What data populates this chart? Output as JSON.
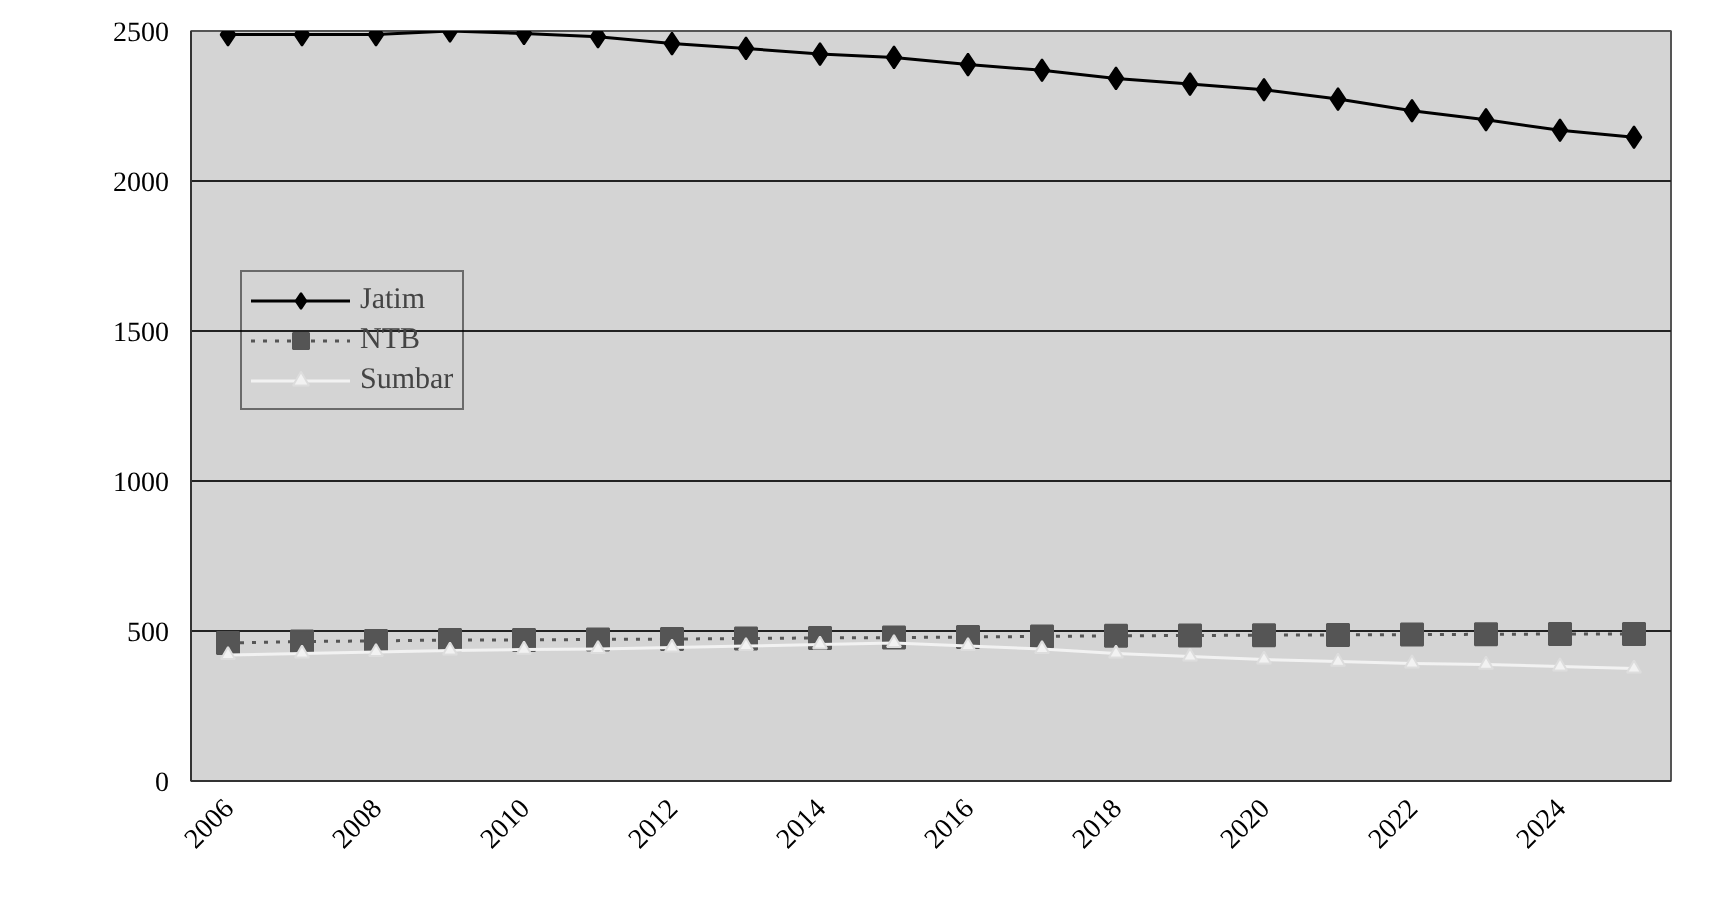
{
  "chart_data": {
    "type": "line",
    "categories": [
      "2006",
      null,
      "2008",
      null,
      "2010",
      null,
      "2012",
      null,
      "2014",
      null,
      "2016",
      null,
      "2018",
      null,
      "2020",
      null,
      "2022",
      null,
      "2024",
      null
    ],
    "series": [
      {
        "name": "Jatim",
        "color": "#000000",
        "marker": "diamond",
        "line_style": "solid",
        "values": [
          2488,
          2488,
          2488,
          2500,
          2492,
          2481,
          2458,
          2442,
          2423,
          2412,
          2388,
          2369,
          2342,
          2323,
          2304,
          2273,
          2234,
          2204,
          2169,
          2146
        ]
      },
      {
        "name": "NTB",
        "color": "#555555",
        "marker": "square",
        "line_style": "dotted",
        "values": [
          460,
          465,
          467,
          470,
          470,
          472,
          473,
          475,
          477,
          478,
          480,
          482,
          484,
          485,
          486,
          487,
          488,
          489,
          490,
          490
        ]
      },
      {
        "name": "Sumbar",
        "color": "#f2f2f2",
        "marker": "triangle",
        "line_style": "solid",
        "values": [
          420,
          425,
          430,
          435,
          438,
          440,
          445,
          450,
          455,
          460,
          450,
          440,
          425,
          415,
          405,
          398,
          392,
          388,
          382,
          375
        ]
      }
    ],
    "ylim": [
      0,
      2500
    ],
    "yticks": [
      0,
      500,
      1000,
      1500,
      2000,
      2500
    ],
    "grid": "y",
    "legend": "left"
  }
}
